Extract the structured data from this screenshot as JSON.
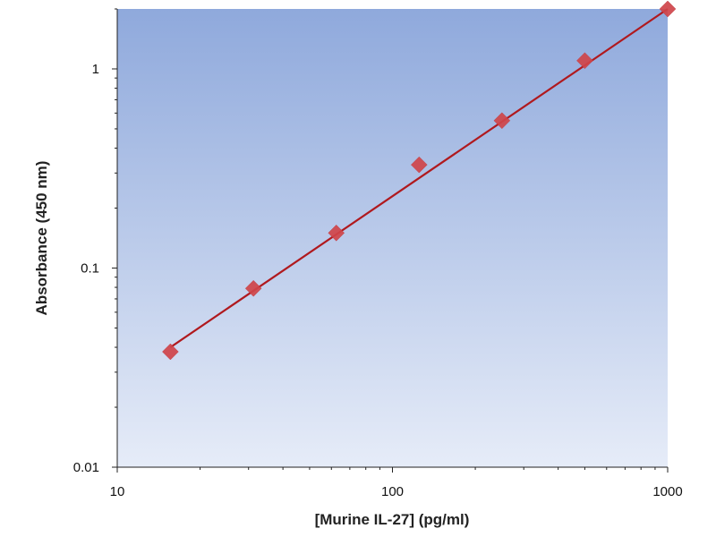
{
  "chart_data": {
    "type": "scatter",
    "title": "",
    "xlabel": "[Murine IL-27] (pg/ml)",
    "ylabel": "Absorbance (450 nm)",
    "xscale": "log",
    "yscale": "log",
    "xlim": [
      10,
      1000
    ],
    "ylim": [
      0.01,
      2
    ],
    "x_ticks": [
      {
        "value": 10,
        "label": "10"
      },
      {
        "value": 100,
        "label": "100"
      },
      {
        "value": 1000,
        "label": "1000"
      }
    ],
    "y_ticks": [
      {
        "value": 0.01,
        "label": "0.01"
      },
      {
        "value": 0.1,
        "label": "0.1"
      },
      {
        "value": 1,
        "label": "1"
      }
    ],
    "grid": false,
    "legend": "none",
    "series": [
      {
        "marker": "diamond",
        "x": [
          15.6,
          31.25,
          62.5,
          125,
          250,
          500,
          1000
        ],
        "y": [
          0.038,
          0.079,
          0.15,
          0.33,
          0.55,
          1.1,
          2.0
        ]
      }
    ],
    "fit_line": {
      "x": [
        15.6,
        1000
      ],
      "y": [
        0.04,
        2.0
      ]
    },
    "colors": {
      "marker": "#d0454a",
      "line": "#b0191e",
      "plot_bg_top": "#8fa9dc",
      "plot_bg_bottom": "#e6ecf8",
      "axis": "#222222"
    }
  }
}
